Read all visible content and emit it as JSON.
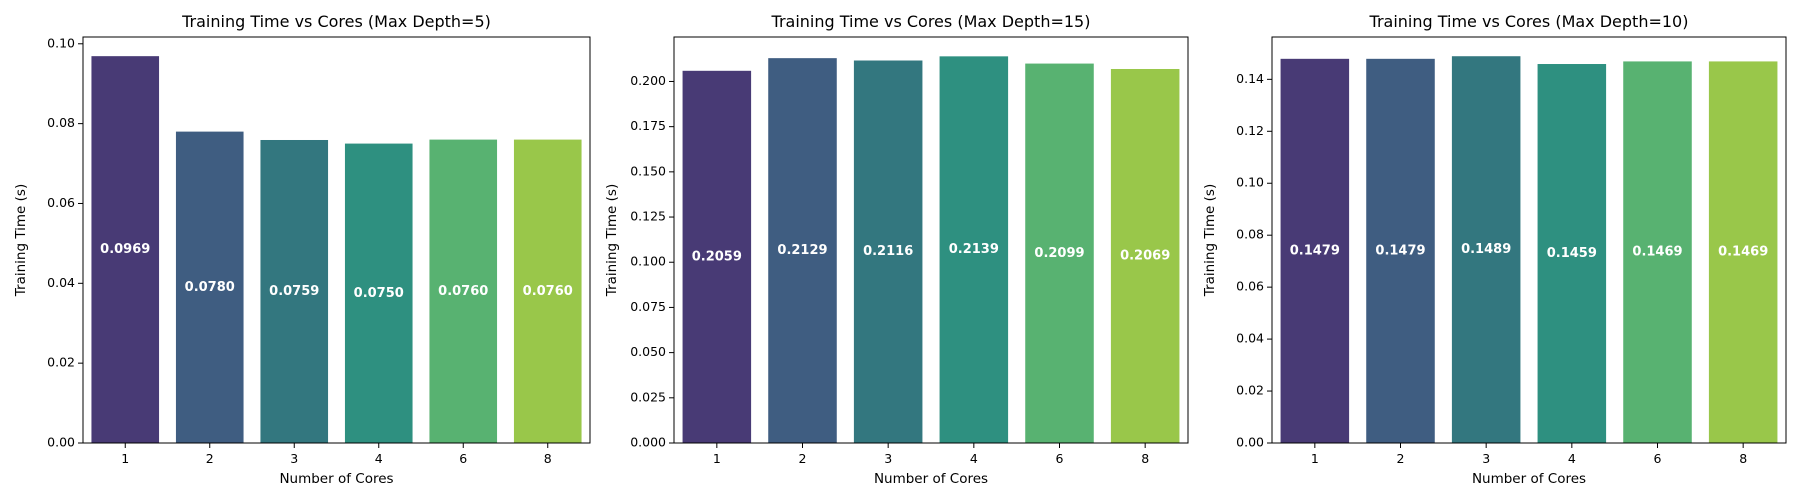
{
  "chart_data": [
    {
      "type": "bar",
      "title": "Training Time vs Cores (Max Depth=5)",
      "xlabel": "Number of Cores",
      "ylabel": "Training Time (s)",
      "categories": [
        "1",
        "2",
        "3",
        "4",
        "6",
        "8"
      ],
      "values": [
        0.0969,
        0.078,
        0.0759,
        0.075,
        0.076,
        0.076
      ],
      "value_labels": [
        "0.0969",
        "0.0780",
        "0.0759",
        "0.0750",
        "0.0760",
        "0.0760"
      ],
      "ylim": [
        0,
        0.1017
      ],
      "yticks": [
        0.0,
        0.02,
        0.04,
        0.06,
        0.08,
        0.1
      ],
      "ytick_labels": [
        "0.00",
        "0.02",
        "0.04",
        "0.06",
        "0.08",
        "0.10"
      ],
      "colors": [
        "#483a75",
        "#3f5d81",
        "#33777f",
        "#2e9080",
        "#58b271",
        "#99c74a"
      ],
      "grid": false
    },
    {
      "type": "bar",
      "title": "Training Time vs Cores (Max Depth=15)",
      "xlabel": "Number of Cores",
      "ylabel": "Training Time (s)",
      "categories": [
        "1",
        "2",
        "3",
        "4",
        "6",
        "8"
      ],
      "values": [
        0.2059,
        0.2129,
        0.2116,
        0.2139,
        0.2099,
        0.2069
      ],
      "value_labels": [
        "0.2059",
        "0.2129",
        "0.2116",
        "0.2139",
        "0.2099",
        "0.2069"
      ],
      "ylim": [
        0,
        0.2246
      ],
      "yticks": [
        0.0,
        0.025,
        0.05,
        0.075,
        0.1,
        0.125,
        0.15,
        0.175,
        0.2
      ],
      "ytick_labels": [
        "0.000",
        "0.025",
        "0.050",
        "0.075",
        "0.100",
        "0.125",
        "0.150",
        "0.175",
        "0.200"
      ],
      "colors": [
        "#483a75",
        "#3f5d81",
        "#33777f",
        "#2e9080",
        "#58b271",
        "#99c74a"
      ],
      "grid": false
    },
    {
      "type": "bar",
      "title": "Training Time vs Cores (Max Depth=10)",
      "xlabel": "Number of Cores",
      "ylabel": "Training Time (s)",
      "categories": [
        "1",
        "2",
        "3",
        "4",
        "6",
        "8"
      ],
      "values": [
        0.1479,
        0.1479,
        0.1489,
        0.1459,
        0.1469,
        0.1469
      ],
      "value_labels": [
        "0.1479",
        "0.1479",
        "0.1489",
        "0.1459",
        "0.1469",
        "0.1469"
      ],
      "ylim": [
        0,
        0.1563
      ],
      "yticks": [
        0.0,
        0.02,
        0.04,
        0.06,
        0.08,
        0.1,
        0.12,
        0.14
      ],
      "ytick_labels": [
        "0.00",
        "0.02",
        "0.04",
        "0.06",
        "0.08",
        "0.10",
        "0.12",
        "0.14"
      ],
      "colors": [
        "#483a75",
        "#3f5d81",
        "#33777f",
        "#2e9080",
        "#58b271",
        "#99c74a"
      ],
      "grid": false
    }
  ]
}
